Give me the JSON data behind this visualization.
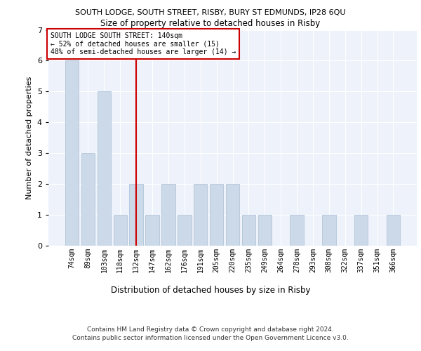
{
  "title1": "SOUTH LODGE, SOUTH STREET, RISBY, BURY ST EDMUNDS, IP28 6QU",
  "title2": "Size of property relative to detached houses in Risby",
  "xlabel": "Distribution of detached houses by size in Risby",
  "ylabel": "Number of detached properties",
  "categories": [
    "74sqm",
    "89sqm",
    "103sqm",
    "118sqm",
    "132sqm",
    "147sqm",
    "162sqm",
    "176sqm",
    "191sqm",
    "205sqm",
    "220sqm",
    "235sqm",
    "249sqm",
    "264sqm",
    "278sqm",
    "293sqm",
    "308sqm",
    "322sqm",
    "337sqm",
    "351sqm",
    "366sqm"
  ],
  "values": [
    6,
    3,
    5,
    1,
    2,
    1,
    2,
    1,
    2,
    2,
    2,
    1,
    1,
    0,
    1,
    0,
    1,
    0,
    1,
    0,
    1
  ],
  "bar_color": "#ccd9e8",
  "bar_edgecolor": "#a8bfd4",
  "highlight_index": 4,
  "highlight_color": "#cc0000",
  "ylim": [
    0,
    7
  ],
  "yticks": [
    0,
    1,
    2,
    3,
    4,
    5,
    6,
    7
  ],
  "annotation_text": "SOUTH LODGE SOUTH STREET: 140sqm\n← 52% of detached houses are smaller (15)\n48% of semi-detached houses are larger (14) →",
  "footnote1": "Contains HM Land Registry data © Crown copyright and database right 2024.",
  "footnote2": "Contains public sector information licensed under the Open Government Licence v3.0.",
  "bg_color": "#eef2fb"
}
